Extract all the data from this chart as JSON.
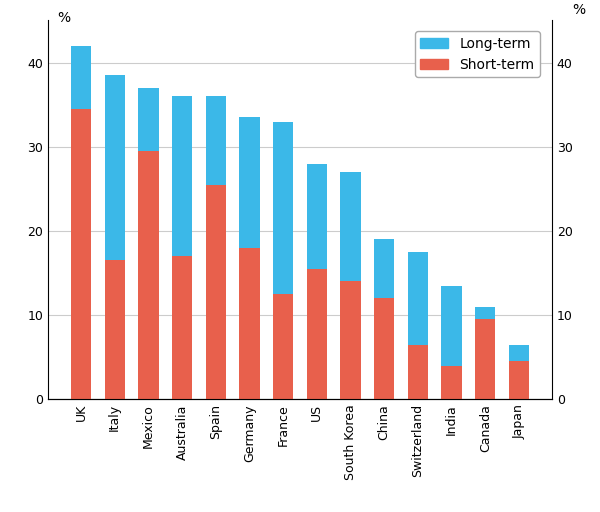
{
  "categories": [
    "UK",
    "Italy",
    "Mexico",
    "Australia",
    "Spain",
    "Germany",
    "France",
    "US",
    "South Korea",
    "China",
    "Switzerland",
    "India",
    "Canada",
    "Japan"
  ],
  "short_term": [
    34.5,
    16.5,
    29.5,
    17.0,
    25.5,
    18.0,
    12.5,
    15.5,
    14.0,
    12.0,
    6.5,
    4.0,
    9.5,
    4.5
  ],
  "long_term": [
    7.5,
    22.0,
    7.5,
    19.0,
    10.5,
    15.5,
    20.5,
    12.5,
    13.0,
    7.0,
    11.0,
    9.5,
    1.5,
    2.0
  ],
  "short_term_color": "#E8604C",
  "long_term_color": "#3BB8E8",
  "ylim": [
    0,
    45
  ],
  "yticks": [
    0,
    10,
    20,
    30,
    40
  ],
  "ylabel_left": "%",
  "ylabel_right": "%",
  "legend_labels": [
    "Long-term",
    "Short-term"
  ],
  "grid_color": "#cccccc",
  "background_color": "#ffffff",
  "bar_width": 0.6,
  "tick_label_fontsize": 9,
  "axis_label_fontsize": 10,
  "legend_fontsize": 10
}
